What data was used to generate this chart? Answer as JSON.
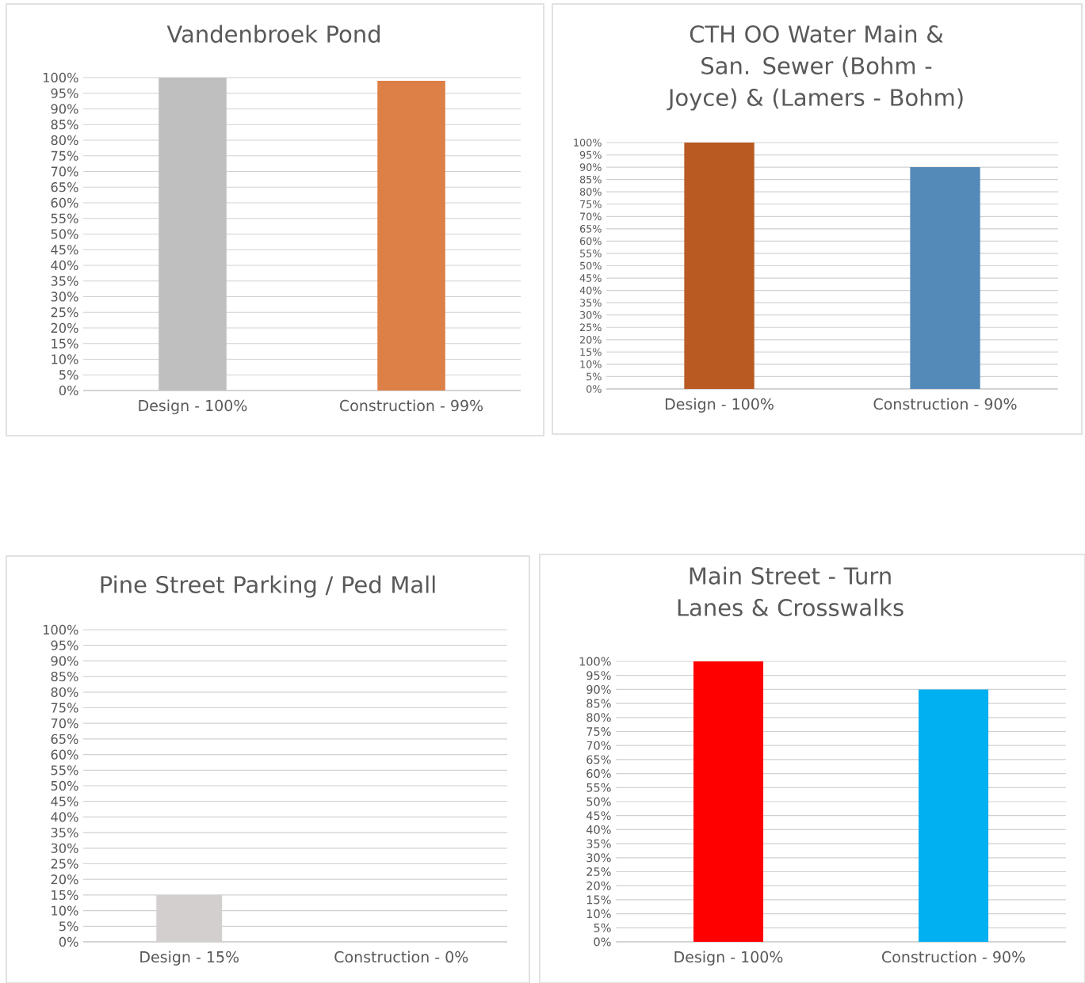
{
  "chart_data": [
    {
      "type": "bar",
      "title": "Vandenbroek Pond",
      "categories": [
        "Design - 100%",
        "Construction - 99%"
      ],
      "values": [
        100,
        99
      ],
      "colors": [
        "#bfbfbf",
        "#dd8047"
      ],
      "ylim": [
        0,
        100
      ],
      "yticks": [
        {
          "value": 0,
          "label": "0%"
        },
        {
          "value": 5,
          "label": "5%"
        },
        {
          "value": 10,
          "label": "10%"
        },
        {
          "value": 15,
          "label": "15%"
        },
        {
          "value": 20,
          "label": "20%"
        },
        {
          "value": 25,
          "label": "25%"
        },
        {
          "value": 30,
          "label": "30%"
        },
        {
          "value": 35,
          "label": "35%"
        },
        {
          "value": 40,
          "label": "40%"
        },
        {
          "value": 45,
          "label": "45%"
        },
        {
          "value": 50,
          "label": "50%"
        },
        {
          "value": 55,
          "label": "55%"
        },
        {
          "value": 60,
          "label": "60%"
        },
        {
          "value": 65,
          "label": "65%"
        },
        {
          "value": 70,
          "label": "70%"
        },
        {
          "value": 75,
          "label": "75%"
        },
        {
          "value": 80,
          "label": "80%"
        },
        {
          "value": 85,
          "label": "85%"
        },
        {
          "value": 90,
          "label": "90%"
        },
        {
          "value": 95,
          "label": "95%"
        },
        {
          "value": 100,
          "label": "100%"
        }
      ],
      "grid": "y"
    },
    {
      "type": "bar",
      "title": "CTH OO Water Main & San. Sewer (Bohm - Joyce) & (Lamers - Bohm)",
      "categories": [
        "Design - 100%",
        "Construction - 90%"
      ],
      "values": [
        100,
        90
      ],
      "colors": [
        "#b85a22",
        "#548ab8"
      ],
      "ylim": [
        0,
        100
      ],
      "yticks": [
        {
          "value": 0,
          "label": "0%"
        },
        {
          "value": 5,
          "label": "5%"
        },
        {
          "value": 10,
          "label": "10%"
        },
        {
          "value": 15,
          "label": "15%"
        },
        {
          "value": 20,
          "label": "20%"
        },
        {
          "value": 25,
          "label": "25%"
        },
        {
          "value": 30,
          "label": "30%"
        },
        {
          "value": 35,
          "label": "35%"
        },
        {
          "value": 40,
          "label": "40%"
        },
        {
          "value": 45,
          "label": "45%"
        },
        {
          "value": 50,
          "label": "50%"
        },
        {
          "value": 55,
          "label": "55%"
        },
        {
          "value": 60,
          "label": "60%"
        },
        {
          "value": 65,
          "label": "65%"
        },
        {
          "value": 70,
          "label": "70%"
        },
        {
          "value": 75,
          "label": "75%"
        },
        {
          "value": 80,
          "label": "80%"
        },
        {
          "value": 85,
          "label": "85%"
        },
        {
          "value": 90,
          "label": "90%"
        },
        {
          "value": 95,
          "label": "95%"
        },
        {
          "value": 100,
          "label": "100%"
        }
      ],
      "grid": "y"
    },
    {
      "type": "bar",
      "title": "Pine Street Parking / Ped Mall",
      "categories": [
        "Design - 15%",
        "Construction - 0%"
      ],
      "values": [
        15,
        0
      ],
      "colors": [
        "#d3cfcf",
        "#d3cfcf"
      ],
      "ylim": [
        0,
        100
      ],
      "yticks": [
        {
          "value": 0,
          "label": "0%"
        },
        {
          "value": 5,
          "label": "5%"
        },
        {
          "value": 10,
          "label": "10%"
        },
        {
          "value": 15,
          "label": "15%"
        },
        {
          "value": 20,
          "label": "20%"
        },
        {
          "value": 25,
          "label": "25%"
        },
        {
          "value": 30,
          "label": "30%"
        },
        {
          "value": 35,
          "label": "35%"
        },
        {
          "value": 40,
          "label": "40%"
        },
        {
          "value": 45,
          "label": "45%"
        },
        {
          "value": 50,
          "label": "50%"
        },
        {
          "value": 55,
          "label": "55%"
        },
        {
          "value": 60,
          "label": "60%"
        },
        {
          "value": 65,
          "label": "65%"
        },
        {
          "value": 70,
          "label": "70%"
        },
        {
          "value": 75,
          "label": "75%"
        },
        {
          "value": 80,
          "label": "80%"
        },
        {
          "value": 85,
          "label": "85%"
        },
        {
          "value": 90,
          "label": "90%"
        },
        {
          "value": 95,
          "label": "95%"
        },
        {
          "value": 100,
          "label": "100%"
        }
      ],
      "grid": "y"
    },
    {
      "type": "bar",
      "title": "Main Street - Turn Lanes & Crosswalks",
      "categories": [
        "Design - 100%",
        "Construction - 90%"
      ],
      "values": [
        100,
        90
      ],
      "colors": [
        "#ff0000",
        "#00b0f0"
      ],
      "ylim": [
        0,
        100
      ],
      "yticks": [
        {
          "value": 0,
          "label": "0%"
        },
        {
          "value": 5,
          "label": "5%"
        },
        {
          "value": 10,
          "label": "10%"
        },
        {
          "value": 15,
          "label": "15%"
        },
        {
          "value": 20,
          "label": "20%"
        },
        {
          "value": 25,
          "label": "25%"
        },
        {
          "value": 30,
          "label": "30%"
        },
        {
          "value": 35,
          "label": "35%"
        },
        {
          "value": 40,
          "label": "40%"
        },
        {
          "value": 45,
          "label": "45%"
        },
        {
          "value": 50,
          "label": "50%"
        },
        {
          "value": 55,
          "label": "55%"
        },
        {
          "value": 60,
          "label": "60%"
        },
        {
          "value": 65,
          "label": "65%"
        },
        {
          "value": 70,
          "label": "70%"
        },
        {
          "value": 75,
          "label": "75%"
        },
        {
          "value": 80,
          "label": "80%"
        },
        {
          "value": 85,
          "label": "85%"
        },
        {
          "value": 90,
          "label": "90%"
        },
        {
          "value": 95,
          "label": "95%"
        },
        {
          "value": 100,
          "label": "100%"
        }
      ],
      "grid": "y"
    }
  ]
}
